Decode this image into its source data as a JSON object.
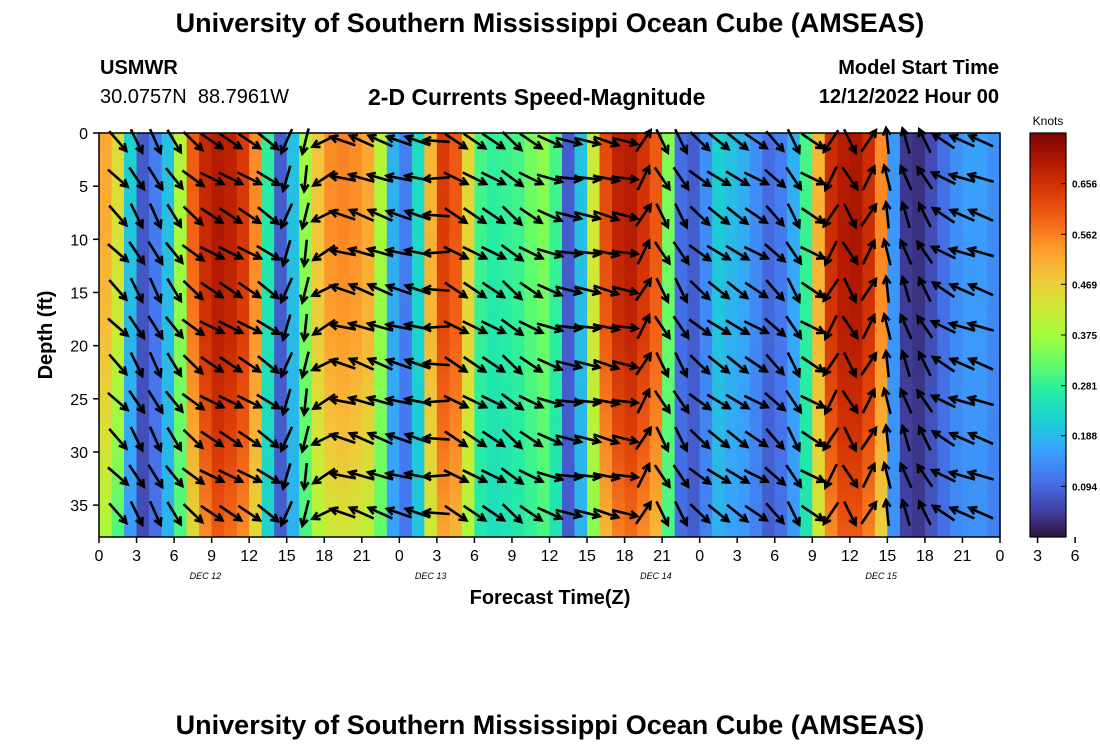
{
  "header": {
    "title": "University of Southern Mississippi Ocean Cube (AMSEAS)",
    "station_id": "USMWR",
    "lat": "30.0757N",
    "lon": "88.7961W",
    "model_start_label": "Model Start Time",
    "model_start_value": "12/12/2022 Hour 00"
  },
  "footer": {
    "title_repeat": "University of Southern Mississippi Ocean Cube (AMSEAS)"
  },
  "chart_data": {
    "type": "heatmap",
    "title": "2-D Currents Speed-Magnitude",
    "xlabel": "Forecast Time(Z)",
    "ylabel": "Depth (ft)",
    "ylim": [
      0,
      38
    ],
    "y_ticks": [
      "0",
      "5",
      "10",
      "15",
      "20",
      "25",
      "30",
      "35"
    ],
    "y_tick_values": [
      0,
      5,
      10,
      15,
      20,
      25,
      30,
      35
    ],
    "x_hours_range": [
      0,
      72
    ],
    "x_ticks": [
      "0",
      "3",
      "6",
      "9",
      "12",
      "15",
      "18",
      "21",
      "0",
      "3",
      "6",
      "9",
      "12",
      "15",
      "18",
      "21",
      "0",
      "3",
      "6",
      "9",
      "12",
      "15",
      "18",
      "21",
      "0",
      "3",
      "6",
      "9",
      "12",
      "15",
      "18",
      "21",
      "0"
    ],
    "day_labels": [
      {
        "label": "DEC 12",
        "hour": 8.5
      },
      {
        "label": "DEC 13",
        "hour": 26.5
      },
      {
        "label": "DEC 14",
        "hour": 44.5
      },
      {
        "label": "DEC 15",
        "hour": 62.5
      }
    ],
    "colorbar": {
      "unit": "Knots",
      "ticks": [
        "0.656",
        "0.562",
        "0.469",
        "0.375",
        "0.281",
        "0.188",
        "0.094"
      ],
      "tick_values": [
        0.656,
        0.562,
        0.469,
        0.375,
        0.281,
        0.188,
        0.094
      ],
      "range": [
        0.0,
        0.75
      ],
      "colors": [
        "#30123b",
        "#4145ab",
        "#4675ed",
        "#39a2fc",
        "#1bcfd4",
        "#24eca6",
        "#61fc6c",
        "#a4fc3b",
        "#d1e834",
        "#f3c63a",
        "#fe9b2d",
        "#f36315",
        "#d93806",
        "#b11901",
        "#7a0403"
      ]
    },
    "speed_profile_hours": [
      0,
      1,
      2,
      3,
      4,
      5,
      6,
      7,
      8,
      9,
      10,
      11,
      12,
      13,
      14,
      15,
      16,
      17,
      18,
      19,
      20,
      21,
      22,
      23,
      24,
      25,
      26,
      27,
      28,
      29,
      30,
      31,
      32,
      33,
      34,
      35,
      36,
      37,
      38,
      39,
      40,
      41,
      42,
      43,
      44,
      45,
      46,
      47,
      48,
      49,
      50,
      51,
      52,
      53,
      54,
      55,
      56,
      57,
      58,
      59,
      60,
      61,
      62,
      63,
      64,
      65,
      66,
      67,
      68,
      69,
      70,
      71,
      72
    ],
    "speed_surface_knots": [
      0.52,
      0.45,
      0.22,
      0.08,
      0.12,
      0.2,
      0.4,
      0.6,
      0.67,
      0.69,
      0.68,
      0.64,
      0.55,
      0.28,
      0.08,
      0.2,
      0.38,
      0.48,
      0.55,
      0.56,
      0.55,
      0.52,
      0.4,
      0.18,
      0.12,
      0.24,
      0.5,
      0.64,
      0.6,
      0.45,
      0.3,
      0.28,
      0.29,
      0.3,
      0.34,
      0.36,
      0.3,
      0.08,
      0.2,
      0.42,
      0.62,
      0.68,
      0.69,
      0.65,
      0.6,
      0.35,
      0.1,
      0.08,
      0.14,
      0.22,
      0.2,
      0.18,
      0.14,
      0.1,
      0.12,
      0.18,
      0.3,
      0.5,
      0.66,
      0.69,
      0.7,
      0.66,
      0.55,
      0.15,
      0.04,
      0.03,
      0.06,
      0.1,
      0.14,
      0.16,
      0.16,
      0.14,
      0.14
    ],
    "speed_bottom_knots": [
      0.38,
      0.3,
      0.15,
      0.06,
      0.1,
      0.18,
      0.3,
      0.45,
      0.55,
      0.6,
      0.58,
      0.55,
      0.45,
      0.22,
      0.08,
      0.18,
      0.3,
      0.38,
      0.42,
      0.43,
      0.42,
      0.4,
      0.32,
      0.16,
      0.11,
      0.2,
      0.42,
      0.52,
      0.5,
      0.38,
      0.26,
      0.24,
      0.25,
      0.26,
      0.28,
      0.3,
      0.25,
      0.08,
      0.18,
      0.35,
      0.5,
      0.56,
      0.58,
      0.55,
      0.5,
      0.3,
      0.1,
      0.08,
      0.12,
      0.18,
      0.16,
      0.15,
      0.12,
      0.08,
      0.1,
      0.15,
      0.25,
      0.42,
      0.55,
      0.6,
      0.6,
      0.56,
      0.46,
      0.14,
      0.05,
      0.04,
      0.07,
      0.1,
      0.13,
      0.14,
      0.14,
      0.12,
      0.12
    ],
    "vectors": {
      "note": "arrows show current direction; angle in degrees, 0 = pointing right, positive = counter-clockwise",
      "hours": [
        0,
        1.5,
        3,
        4.5,
        6,
        7.5,
        9,
        10.5,
        12,
        13.5,
        15,
        16.5,
        18,
        19.5,
        21,
        22.5,
        24,
        25.5,
        27,
        28.5,
        30,
        31.5,
        33,
        34.5,
        36,
        37.5,
        39,
        40.5,
        42,
        43.5,
        45,
        46.5,
        48,
        49.5,
        51,
        52.5,
        54,
        55.5,
        57,
        58.5,
        60,
        61.5,
        63,
        64.5,
        66,
        67.5,
        69,
        70.5,
        72
      ],
      "angles_deg": [
        -25,
        -45,
        -60,
        -62,
        -55,
        -40,
        -30,
        -30,
        -30,
        -35,
        -110,
        -100,
        -150,
        165,
        160,
        160,
        165,
        165,
        180,
        -30,
        -30,
        -30,
        -40,
        -30,
        -20,
        -10,
        -10,
        -15,
        -10,
        60,
        -60,
        -60,
        -40,
        -35,
        -35,
        -30,
        -45,
        -60,
        -30,
        -120,
        -60,
        60,
        100,
        110,
        120,
        150,
        160,
        160,
        165
      ]
    }
  }
}
